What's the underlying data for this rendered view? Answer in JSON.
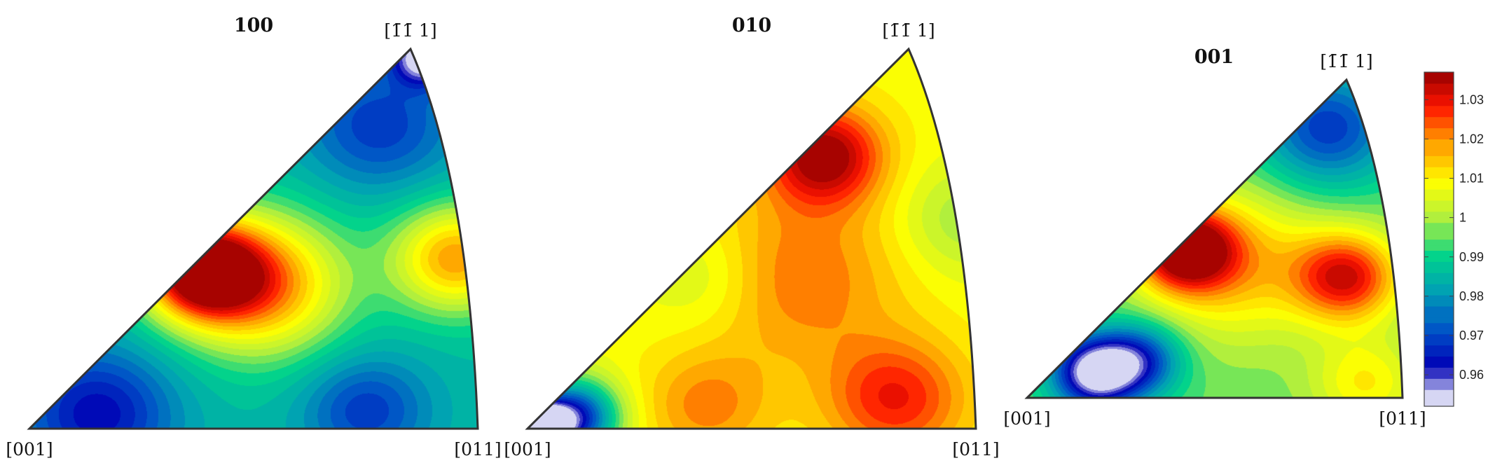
{
  "chart_data": {
    "type": "heatmap",
    "plots": [
      {
        "title": "100",
        "corner_labels": {
          "origin": "[001]",
          "right": "[011]",
          "apex": "[1̄1̄ 1]"
        },
        "blobs": [
          {
            "u": 0.38,
            "v": 0.42,
            "value": 1.038,
            "spread": 0.09
          },
          {
            "u": 0.52,
            "v": 0.38,
            "value": 1.02,
            "spread": 0.13
          },
          {
            "u": 0.95,
            "v": 0.45,
            "value": 1.018,
            "spread": 0.1
          },
          {
            "u": 0.15,
            "v": 0.04,
            "value": 0.962,
            "spread": 0.12
          },
          {
            "u": 0.75,
            "v": 0.05,
            "value": 0.968,
            "spread": 0.1
          },
          {
            "u": 0.78,
            "v": 0.8,
            "value": 0.968,
            "spread": 0.12
          },
          {
            "u": 0.88,
            "v": 0.98,
            "value": 0.95,
            "spread": 0.05
          }
        ],
        "base": 0.985
      },
      {
        "title": "010",
        "corner_labels": {
          "origin": "[001]",
          "right": "[011]",
          "apex": "[1̄1̄ 1]"
        },
        "blobs": [
          {
            "u": 0.66,
            "v": 0.72,
            "value": 1.038,
            "spread": 0.09
          },
          {
            "u": 0.6,
            "v": 0.4,
            "value": 1.022,
            "spread": 0.16
          },
          {
            "u": 0.82,
            "v": 0.08,
            "value": 1.028,
            "spread": 0.11
          },
          {
            "u": 0.4,
            "v": 0.06,
            "value": 1.02,
            "spread": 0.1
          },
          {
            "u": 0.1,
            "v": 0.03,
            "value": 0.962,
            "spread": 0.07
          },
          {
            "u": 0.03,
            "v": 0.01,
            "value": 0.95,
            "spread": 0.04
          },
          {
            "u": 0.4,
            "v": 0.4,
            "value": 1.0,
            "spread": 0.1
          },
          {
            "u": 0.97,
            "v": 0.55,
            "value": 0.998,
            "spread": 0.1
          }
        ],
        "base": 1.008
      },
      {
        "title": "001",
        "corner_labels": {
          "origin": "[001]",
          "right": "[011]",
          "apex": "[1̄1̄ 1]"
        },
        "blobs": [
          {
            "u": 0.42,
            "v": 0.47,
            "value": 1.038,
            "spread": 0.09
          },
          {
            "u": 0.85,
            "v": 0.38,
            "value": 1.03,
            "spread": 0.1
          },
          {
            "u": 0.55,
            "v": 0.42,
            "value": 1.015,
            "spread": 0.16
          },
          {
            "u": 0.18,
            "v": 0.08,
            "value": 0.95,
            "spread": 0.08
          },
          {
            "u": 0.3,
            "v": 0.12,
            "value": 0.968,
            "spread": 0.08
          },
          {
            "u": 0.8,
            "v": 0.85,
            "value": 0.968,
            "spread": 0.13
          },
          {
            "u": 0.9,
            "v": 0.05,
            "value": 1.01,
            "spread": 0.1
          }
        ],
        "base": 0.995
      }
    ],
    "colorbar": {
      "min": 0.952,
      "max": 1.037,
      "ticks": [
        0.96,
        0.97,
        0.98,
        0.99,
        1.0,
        1.01,
        1.02,
        1.03
      ],
      "tick_labels": [
        "0.96",
        "0.97",
        "0.98",
        "0.99",
        "1",
        "1.01",
        "1.02",
        "1.03"
      ],
      "colormap": [
        "#ffffff",
        "#0000b4",
        "#0050c8",
        "#00a0b4",
        "#00d28c",
        "#b4f03c",
        "#ffff00",
        "#ffa000",
        "#ff1400",
        "#960000"
      ]
    }
  }
}
